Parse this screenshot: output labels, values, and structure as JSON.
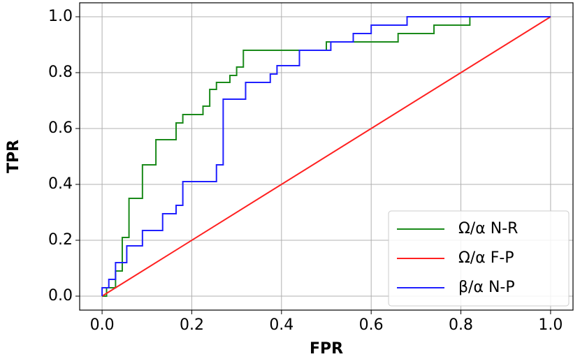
{
  "chart_data": {
    "type": "line",
    "xlabel": "FPR",
    "ylabel": "TPR",
    "xlim": [
      -0.05,
      1.05
    ],
    "ylim": [
      -0.05,
      1.05
    ],
    "xticks": [
      {
        "value": 0,
        "label": "0.0"
      },
      0.2,
      0.4,
      0.6,
      0.8,
      {
        "value": 1,
        "label": "1.0"
      }
    ],
    "yticks": [
      {
        "value": 0,
        "label": "0.0"
      },
      0.2,
      0.4,
      0.6,
      0.8,
      {
        "value": 1,
        "label": "1.0"
      }
    ],
    "grid": true,
    "legend": "lower right",
    "series": [
      {
        "name": "Ω/α N-R",
        "color": "#1a8a1a",
        "x": [
          0,
          0.01,
          0.01,
          0.03,
          0.03,
          0.045,
          0.045,
          0.06,
          0.06,
          0.09,
          0.09,
          0.12,
          0.12,
          0.165,
          0.165,
          0.18,
          0.18,
          0.225,
          0.225,
          0.24,
          0.24,
          0.255,
          0.255,
          0.285,
          0.285,
          0.3,
          0.3,
          0.315,
          0.315,
          0.5,
          0.5,
          0.66,
          0.66,
          0.74,
          0.74,
          0.82,
          0.82,
          1
        ],
        "values": [
          0,
          0,
          0.03,
          0.03,
          0.09,
          0.09,
          0.21,
          0.21,
          0.35,
          0.35,
          0.47,
          0.47,
          0.56,
          0.56,
          0.62,
          0.62,
          0.65,
          0.65,
          0.68,
          0.68,
          0.74,
          0.74,
          0.765,
          0.765,
          0.79,
          0.79,
          0.82,
          0.82,
          0.88,
          0.88,
          0.91,
          0.91,
          0.94,
          0.94,
          0.97,
          0.97,
          1,
          1
        ]
      },
      {
        "name": "Ω/α F-P",
        "color": "#ff2020",
        "x": [
          0,
          1
        ],
        "values": [
          0,
          1
        ]
      },
      {
        "name": "β/α N-P",
        "color": "#1f1fff",
        "x": [
          0,
          0,
          0.015,
          0.015,
          0.03,
          0.03,
          0.055,
          0.055,
          0.09,
          0.09,
          0.135,
          0.135,
          0.165,
          0.165,
          0.18,
          0.18,
          0.255,
          0.255,
          0.27,
          0.27,
          0.32,
          0.32,
          0.375,
          0.375,
          0.39,
          0.39,
          0.44,
          0.44,
          0.51,
          0.51,
          0.56,
          0.56,
          0.6,
          0.6,
          0.68,
          0.68,
          1
        ],
        "values": [
          0,
          0.03,
          0.03,
          0.06,
          0.06,
          0.12,
          0.12,
          0.18,
          0.18,
          0.235,
          0.235,
          0.295,
          0.295,
          0.325,
          0.325,
          0.41,
          0.41,
          0.47,
          0.47,
          0.705,
          0.705,
          0.765,
          0.765,
          0.795,
          0.795,
          0.825,
          0.825,
          0.88,
          0.88,
          0.91,
          0.91,
          0.94,
          0.94,
          0.97,
          0.97,
          1,
          1
        ]
      }
    ]
  }
}
